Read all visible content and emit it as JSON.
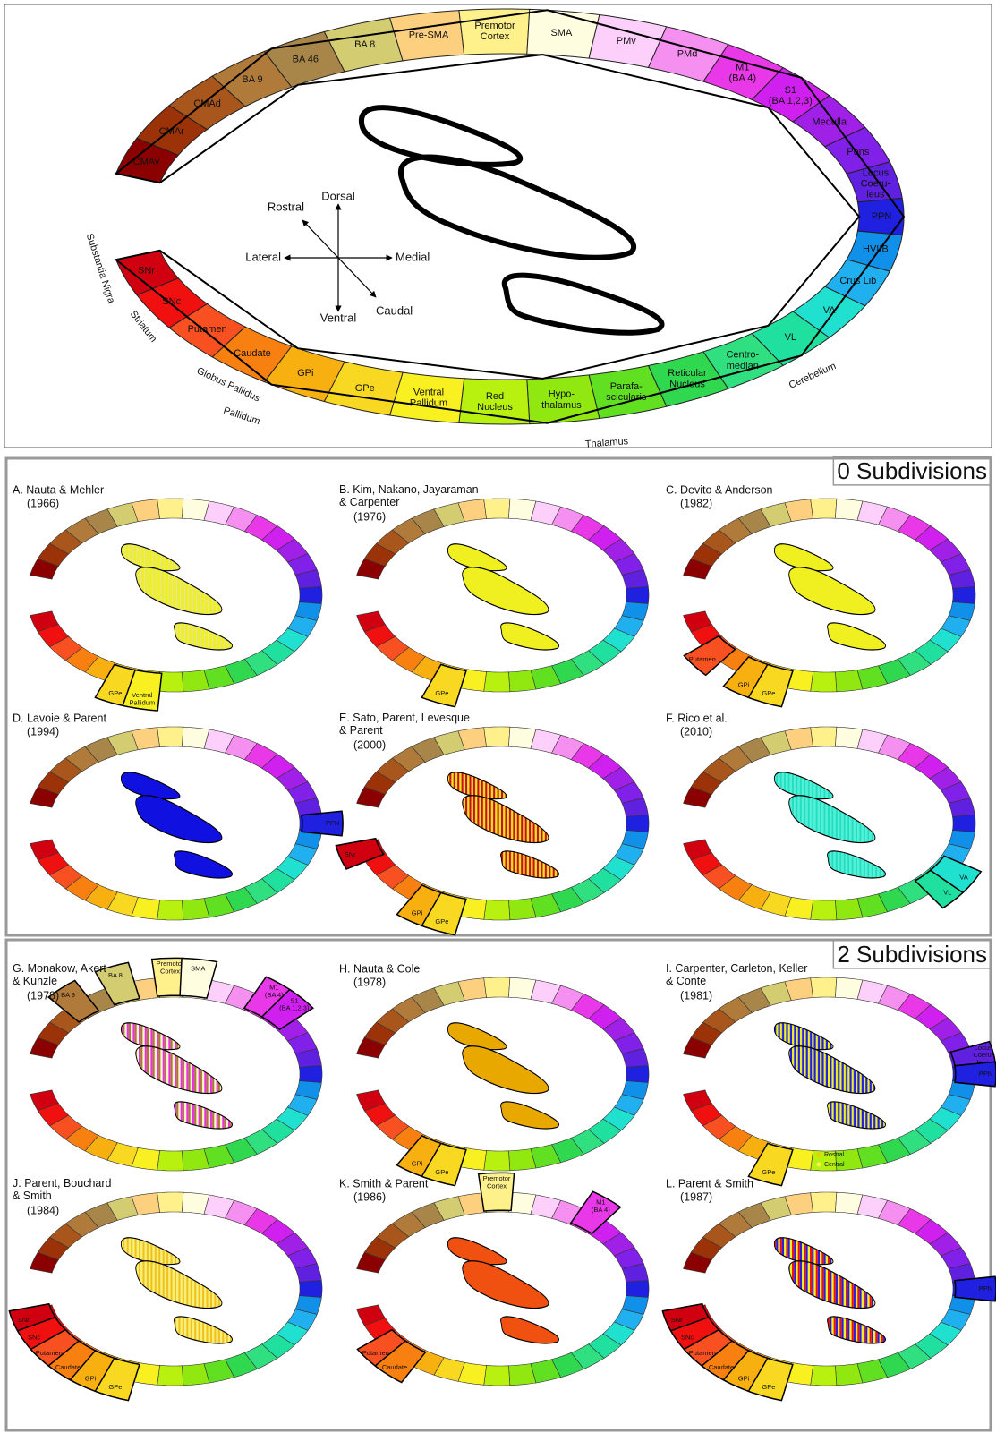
{
  "main": {
    "segments": [
      {
        "label": "CMAv",
        "color": "#8b0000"
      },
      {
        "label": "CMAr",
        "color": "#9c3208"
      },
      {
        "label": "CMAd",
        "color": "#a8561c"
      },
      {
        "label": "BA 9",
        "color": "#b07a3a"
      },
      {
        "label": "BA 46",
        "color": "#a8864a"
      },
      {
        "label": "BA 8",
        "color": "#d4cc70"
      },
      {
        "label": "Pre-SMA",
        "color": "#fdd080"
      },
      {
        "label": "Premotor\nCortex",
        "color": "#fef08a"
      },
      {
        "label": "SMA",
        "color": "#fffde0"
      },
      {
        "label": "PMv",
        "color": "#fcd0fa"
      },
      {
        "label": "PMd",
        "color": "#f590f0"
      },
      {
        "label": "M1\n(BA 4)",
        "color": "#e838e8"
      },
      {
        "label": "S1\n(BA 1,2,3)",
        "color": "#d020f0"
      },
      {
        "label": "Medulla",
        "color": "#a020e8"
      },
      {
        "label": "Pons",
        "color": "#8020e8"
      },
      {
        "label": "Locus\nCoeru-\nleus",
        "color": "#6020e0"
      },
      {
        "label": "PPN",
        "color": "#2020e0"
      },
      {
        "label": "HVIIB",
        "color": "#1090e8"
      },
      {
        "label": "Crus Lib",
        "color": "#20b0f0"
      },
      {
        "label": "VA",
        "color": "#20e0d0"
      },
      {
        "label": "VL",
        "color": "#20e0a0"
      },
      {
        "label": "Centro-\nmedian",
        "color": "#30e080"
      },
      {
        "label": "Reticular\nNucleus",
        "color": "#30d850"
      },
      {
        "label": "Parafa-\nscicularis",
        "color": "#60e020"
      },
      {
        "label": "Hypo-\nthalamus",
        "color": "#90e810"
      },
      {
        "label": "Red\nNucleus",
        "color": "#b8f010"
      },
      {
        "label": "Ventral\nPallidum",
        "color": "#f8f020"
      },
      {
        "label": "GPe",
        "color": "#f8d820"
      },
      {
        "label": "GPi",
        "color": "#f8b010"
      },
      {
        "label": "Caudate",
        "color": "#f88010"
      },
      {
        "label": "Putamen",
        "color": "#f85020"
      },
      {
        "label": "SNc",
        "color": "#f01010"
      },
      {
        "label": "SNr",
        "color": "#d00010"
      }
    ],
    "groups": [
      "Substantia Nigra",
      "Striatum",
      "Globus Pallidus",
      "Pallidum",
      "Thalamus",
      "Cerebellum"
    ],
    "directions": {
      "up": "Dorsal",
      "down": "Ventral",
      "left": "Lateral",
      "right": "Medial",
      "upleft": "Rostral",
      "downright": "Caudal"
    }
  },
  "panels": [
    {
      "title": "0 Subdivisions",
      "studies": [
        {
          "title": "A. Nauta & Mehler",
          "year": "(1966)",
          "highlights": [
            "GPe",
            "Ventral\nPallidum"
          ],
          "fill": [
            "#f0f020",
            "#e8e860"
          ]
        },
        {
          "title": "B. Kim, Nakano, Jayaraman\n& Carpenter",
          "year": "(1976)",
          "highlights": [
            "GPe"
          ],
          "fill": [
            "#f0f020"
          ]
        },
        {
          "title": "C. Devito & Anderson",
          "year": "(1982)",
          "highlights": [
            "Putamen",
            "GPi",
            "GPe"
          ],
          "fill": [
            "#f0f020"
          ]
        },
        {
          "title": "D. Lavoie & Parent",
          "year": "(1994)",
          "highlights": [
            "PPN"
          ],
          "fill": [
            "#1010e0"
          ]
        },
        {
          "title": "E. Sato, Parent, Levesque\n& Parent",
          "year": "(2000)",
          "highlights": [
            "SNr",
            "GPi",
            "GPe"
          ],
          "fill": [
            "#c81010",
            "#f0e020"
          ]
        },
        {
          "title": "F. Rico et al.",
          "year": "(2010)",
          "highlights": [
            "VL",
            "VA"
          ],
          "fill": [
            "#20e0c0",
            "#50f0d8"
          ]
        }
      ]
    },
    {
      "title": "2 Subdivisions",
      "studies": [
        {
          "title": "G. Monakow, Akert\n& Kunzle",
          "year": "(1978)",
          "highlights": [
            "BA 9",
            "BA 8",
            "Premotor\nCortex",
            "SMA",
            "M1\n(BA 4)",
            "S1\n(BA 1,2,3)"
          ],
          "fill": [
            "#e830e8",
            "#a87838",
            "#fff8c0"
          ]
        },
        {
          "title": "H. Nauta & Cole",
          "year": "(1978)",
          "highlights": [
            "GPi",
            "GPe"
          ],
          "fill": [
            "#e8a800"
          ]
        },
        {
          "title": "I. Carpenter, Carleton, Keller\n& Conte",
          "year": "(1981)",
          "highlights": [
            "Locus\nCoeru-\nleus",
            "PPN",
            "GPe"
          ],
          "fill": [
            "#f0f020",
            "#2020e0"
          ],
          "legend": [
            "Rostral",
            "Central"
          ]
        },
        {
          "title": "J. Parent, Bouchard\n& Smith",
          "year": "(1984)",
          "highlights": [
            "SNr",
            "SNc",
            "Putamen",
            "Caudate",
            "GPi",
            "GPe"
          ],
          "fill": [
            "#f0c020",
            "#f8f070"
          ]
        },
        {
          "title": "K. Smith & Parent",
          "year": "(1986)",
          "highlights": [
            "Premotor\nCortex",
            "M1\n(BA 4)",
            "Putamen",
            "Caudate"
          ],
          "fill": [
            "#f05010"
          ]
        },
        {
          "title": "L. Parent & Smith",
          "year": "(1987)",
          "highlights": [
            "SNr",
            "SNc",
            "Putamen",
            "Caudate",
            "GPi",
            "GPe",
            "PPN"
          ],
          "fill": [
            "#f01010",
            "#2020e0",
            "#f8f020"
          ]
        }
      ]
    }
  ]
}
